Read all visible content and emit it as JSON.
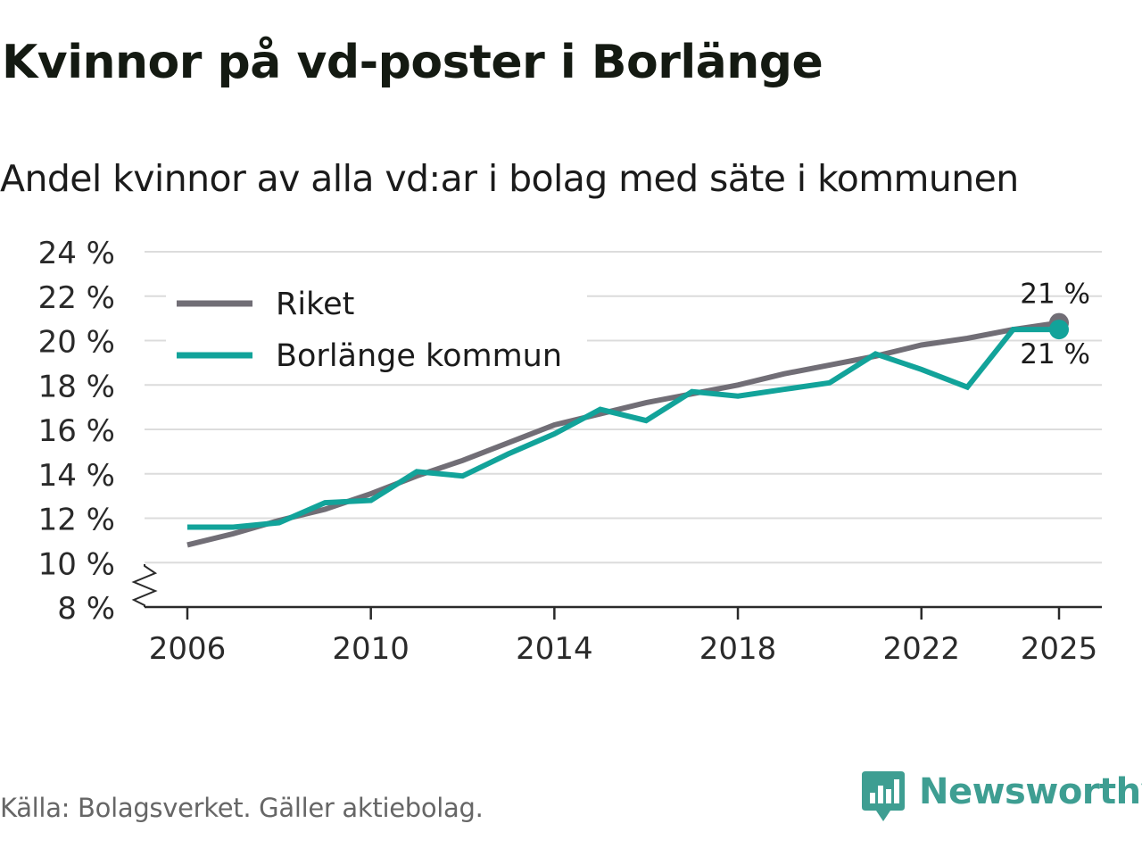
{
  "title": "Kvinnor på vd-poster i Borlänge",
  "subtitle": "Andel kvinnor av alla vd:ar i bolag med säte i kommunen",
  "source": "Källa: Bolagsverket. Gäller aktiebolag.",
  "brand": {
    "name": "Newsworthy",
    "icon": "newsworthy-logo-icon",
    "color": "#3e9e92"
  },
  "chart_data": {
    "type": "line",
    "title": "Kvinnor på vd-poster i Borlänge",
    "subtitle": "Andel kvinnor av alla vd:ar i bolag med säte i kommunen",
    "xlabel": "",
    "ylabel": "",
    "xlim": [
      2006,
      2025
    ],
    "ylim": [
      8,
      24
    ],
    "y_ticks": [
      8,
      10,
      12,
      14,
      16,
      18,
      20,
      22,
      24
    ],
    "y_tick_labels": [
      "8 %",
      "10 %",
      "12 %",
      "14 %",
      "16 %",
      "18 %",
      "20 %",
      "22 %",
      "24 %"
    ],
    "x_ticks": [
      2006,
      2010,
      2014,
      2018,
      2022,
      2025
    ],
    "x_tick_labels": [
      "2006",
      "2010",
      "2014",
      "2018",
      "2022",
      "2025"
    ],
    "axis_break": true,
    "grid": true,
    "legend_position": "top-left",
    "x": [
      2006,
      2007,
      2008,
      2009,
      2010,
      2011,
      2012,
      2013,
      2014,
      2015,
      2016,
      2017,
      2018,
      2019,
      2020,
      2021,
      2022,
      2023,
      2024,
      2025
    ],
    "series": [
      {
        "name": "Riket",
        "color": "#716e76",
        "values": [
          10.8,
          11.3,
          11.9,
          12.4,
          13.1,
          13.9,
          14.6,
          15.4,
          16.2,
          16.7,
          17.2,
          17.6,
          18.0,
          18.5,
          18.9,
          19.3,
          19.8,
          20.1,
          20.5,
          20.8
        ],
        "end_label": "21 %"
      },
      {
        "name": "Borlänge kommun",
        "color": "#12a39a",
        "values": [
          11.6,
          11.6,
          11.8,
          12.7,
          12.8,
          14.1,
          13.9,
          14.9,
          15.8,
          16.9,
          16.4,
          17.7,
          17.5,
          17.8,
          18.1,
          19.4,
          18.7,
          17.9,
          20.5,
          20.5
        ],
        "end_label": "21 %"
      }
    ]
  }
}
